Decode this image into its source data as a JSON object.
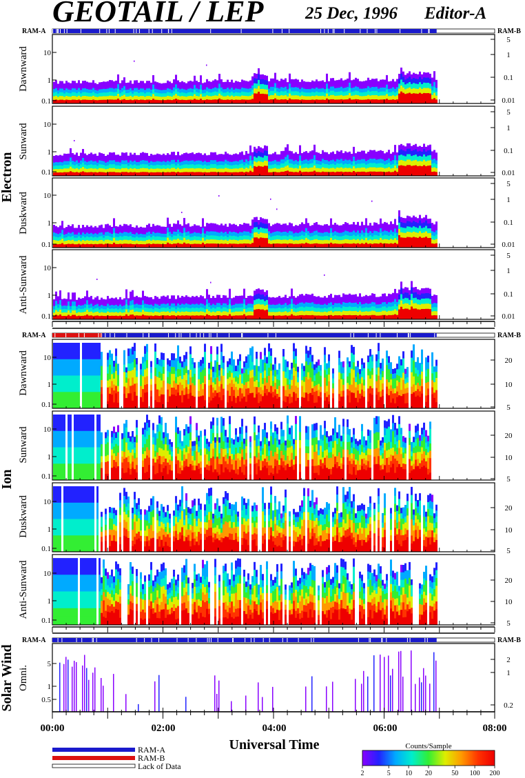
{
  "header": {
    "title": "GEOTAIL / LEP",
    "date": "25 Dec, 1996",
    "editor": "Editor-A"
  },
  "ram": {
    "a": "RAM-A",
    "b": "RAM-B"
  },
  "groups": [
    {
      "id": "electron",
      "label": "Electron",
      "panels": [
        {
          "label": "Dawnward",
          "left_ticks": [
            "10",
            "1",
            "0.1"
          ],
          "right_ticks": [
            "5",
            "1",
            "0.1",
            "0.01"
          ]
        },
        {
          "label": "Sunward",
          "left_ticks": [
            "10",
            "1",
            "0.1"
          ],
          "right_ticks": [
            "5",
            "1",
            "0.1",
            "0.01"
          ]
        },
        {
          "label": "Duskward",
          "left_ticks": [
            "10",
            "1",
            "0.1"
          ],
          "right_ticks": [
            "5",
            "1",
            "0.1",
            "0.01"
          ]
        },
        {
          "label": "Anti-Sunward",
          "left_ticks": [
            "10",
            "1",
            "0.1"
          ],
          "right_ticks": [
            "5",
            "1",
            "0.1",
            "0.01"
          ]
        }
      ]
    },
    {
      "id": "ion",
      "label": "Ion",
      "panels": [
        {
          "label": "Dawnward",
          "left_ticks": [
            "10",
            "1",
            "0.1"
          ],
          "right_ticks": [
            "20",
            "10",
            "5"
          ]
        },
        {
          "label": "Sunward",
          "left_ticks": [
            "10",
            "1",
            "0.1"
          ],
          "right_ticks": [
            "20",
            "10",
            "5"
          ]
        },
        {
          "label": "Duskward",
          "left_ticks": [
            "10",
            "1",
            "0.1"
          ],
          "right_ticks": [
            "20",
            "10",
            "5"
          ]
        },
        {
          "label": "Anti-Sunward",
          "left_ticks": [
            "10",
            "1",
            "0.1"
          ],
          "right_ticks": [
            "20",
            "10",
            "5"
          ]
        }
      ]
    },
    {
      "id": "solarwind",
      "label": "Solar Wind",
      "panels": [
        {
          "label": "Omni.",
          "left_ticks": [
            "5",
            "1",
            "0.5"
          ],
          "right_ticks": [
            "2",
            "1",
            "0.2"
          ]
        }
      ]
    }
  ],
  "x_axis": {
    "title": "Universal Time",
    "ticks": [
      "00:00",
      "02:00",
      "04:00",
      "06:00",
      "08:00"
    ]
  },
  "legend": {
    "items": [
      {
        "label": "RAM-A",
        "color": "#1a1acc"
      },
      {
        "label": "RAM-B",
        "color": "#dd1111"
      },
      {
        "label": "Lack of Data",
        "color": "#ffffff"
      }
    ]
  },
  "colorbar": {
    "title": "Counts/Sample",
    "ticks": [
      "2",
      "5",
      "10",
      "20",
      "50",
      "100",
      "200"
    ],
    "stops": [
      "#8800ff",
      "#2222ff",
      "#00aaff",
      "#00eecc",
      "#33ee33",
      "#ddee00",
      "#ff9900",
      "#ff3300",
      "#ee0000"
    ]
  },
  "chart_data": {
    "type": "heatmap",
    "xlabel": "Universal Time",
    "x_range_hours": [
      0,
      8
    ],
    "data_end_hour": 6.95,
    "colorbar_range": [
      2,
      200
    ],
    "colorbar_scale": "log"
  }
}
